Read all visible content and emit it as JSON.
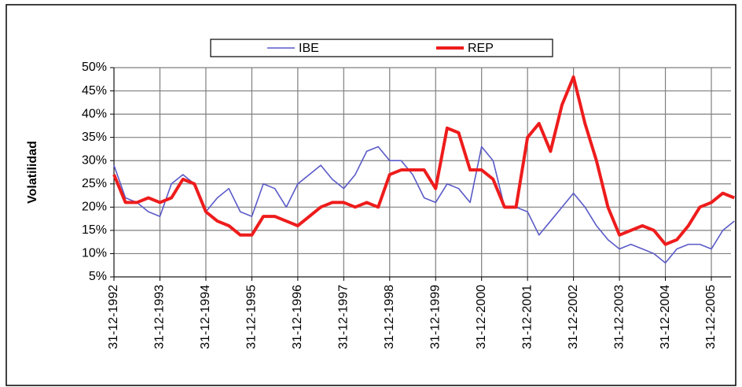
{
  "chart_data": {
    "type": "line",
    "y_label": "Volatilidad",
    "categories": [
      "31-12-1992",
      null,
      null,
      null,
      "31-12-1993",
      null,
      null,
      null,
      "31-12-1994",
      null,
      null,
      null,
      "31-12-1995",
      null,
      null,
      null,
      "31-12-1996",
      null,
      null,
      null,
      "31-12-1997",
      null,
      null,
      null,
      "31-12-1998",
      null,
      null,
      null,
      "31-12-1999",
      null,
      null,
      null,
      "31-12-2000",
      null,
      null,
      null,
      "31-12-2001",
      null,
      null,
      null,
      "31-12-2002",
      null,
      null,
      null,
      "31-12-2003",
      null,
      null,
      null,
      "31-12-2004",
      null,
      null,
      null,
      "31-12-2005",
      null,
      null
    ],
    "series": [
      {
        "name": "IBE",
        "color": "#5a5ac8",
        "values": [
          29,
          22,
          21,
          19,
          18,
          25,
          27,
          25,
          19,
          22,
          24,
          19,
          18,
          25,
          24,
          20,
          25,
          27,
          29,
          26,
          24,
          27,
          32,
          33,
          30,
          30,
          27,
          22,
          21,
          25,
          24,
          21,
          33,
          30,
          20,
          20,
          19,
          14,
          17,
          20,
          23,
          20,
          16,
          13,
          11,
          12,
          11,
          10,
          8,
          11,
          12,
          12,
          11,
          15,
          17
        ]
      },
      {
        "name": "REP",
        "color": "#ee1c1c",
        "values": [
          27,
          21,
          21,
          22,
          21,
          22,
          26,
          25,
          19,
          17,
          16,
          14,
          14,
          18,
          18,
          17,
          16,
          18,
          20,
          21,
          21,
          20,
          21,
          20,
          27,
          28,
          28,
          28,
          24,
          37,
          36,
          28,
          28,
          26,
          20,
          20,
          35,
          38,
          32,
          42,
          48,
          38,
          30,
          20,
          14,
          15,
          16,
          15,
          12,
          13,
          16,
          20,
          21,
          23,
          22
        ]
      }
    ],
    "ylim": [
      5,
      50
    ],
    "yticks": [
      {
        "value": 5,
        "label": "5%"
      },
      {
        "value": 10,
        "label": "10%"
      },
      {
        "value": 15,
        "label": "15%"
      },
      {
        "value": 20,
        "label": "20%"
      },
      {
        "value": 25,
        "label": "25%"
      },
      {
        "value": 30,
        "label": "30%"
      },
      {
        "value": 35,
        "label": "35%"
      },
      {
        "value": 40,
        "label": "40%"
      },
      {
        "value": 45,
        "label": "45%"
      },
      {
        "value": 50,
        "label": "50%"
      }
    ],
    "grid": true
  }
}
